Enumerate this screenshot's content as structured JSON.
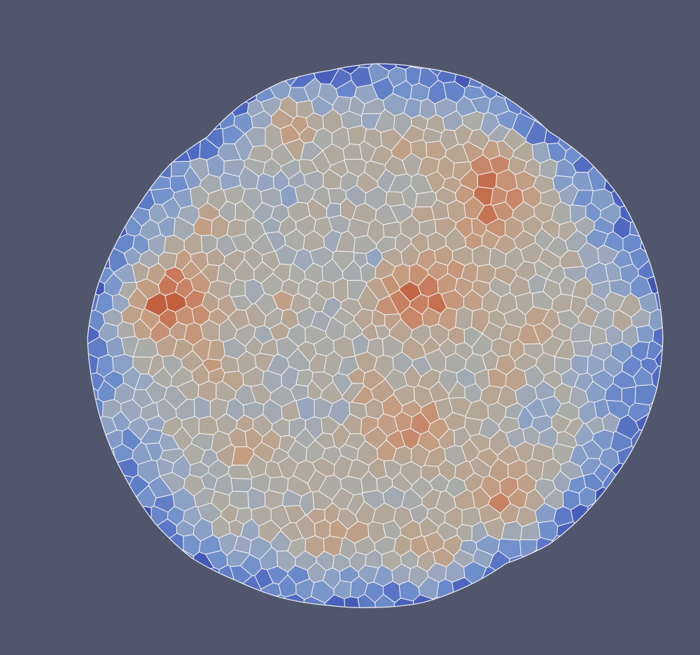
{
  "scene": {
    "background_color": "#50566b",
    "cell_edge_color": "#f2f2f2",
    "colormap": {
      "name": "cool-to-warm",
      "stops": [
        "#2f3e9c",
        "#4c65c0",
        "#7090cc",
        "#94a5c2",
        "#acaca6",
        "#b8a491",
        "#c49c80",
        "#c98062",
        "#c0603e"
      ]
    },
    "hotspots": [
      {
        "name": "left-cluster",
        "strength": 1.0
      },
      {
        "name": "center-cluster",
        "strength": 0.9
      },
      {
        "name": "upper-right-cluster",
        "strength": 0.85
      },
      {
        "name": "lower-center-cluster",
        "strength": 0.7
      },
      {
        "name": "lower-right-cluster",
        "strength": 0.75
      },
      {
        "name": "top-left-cluster",
        "strength": 0.75
      }
    ]
  }
}
